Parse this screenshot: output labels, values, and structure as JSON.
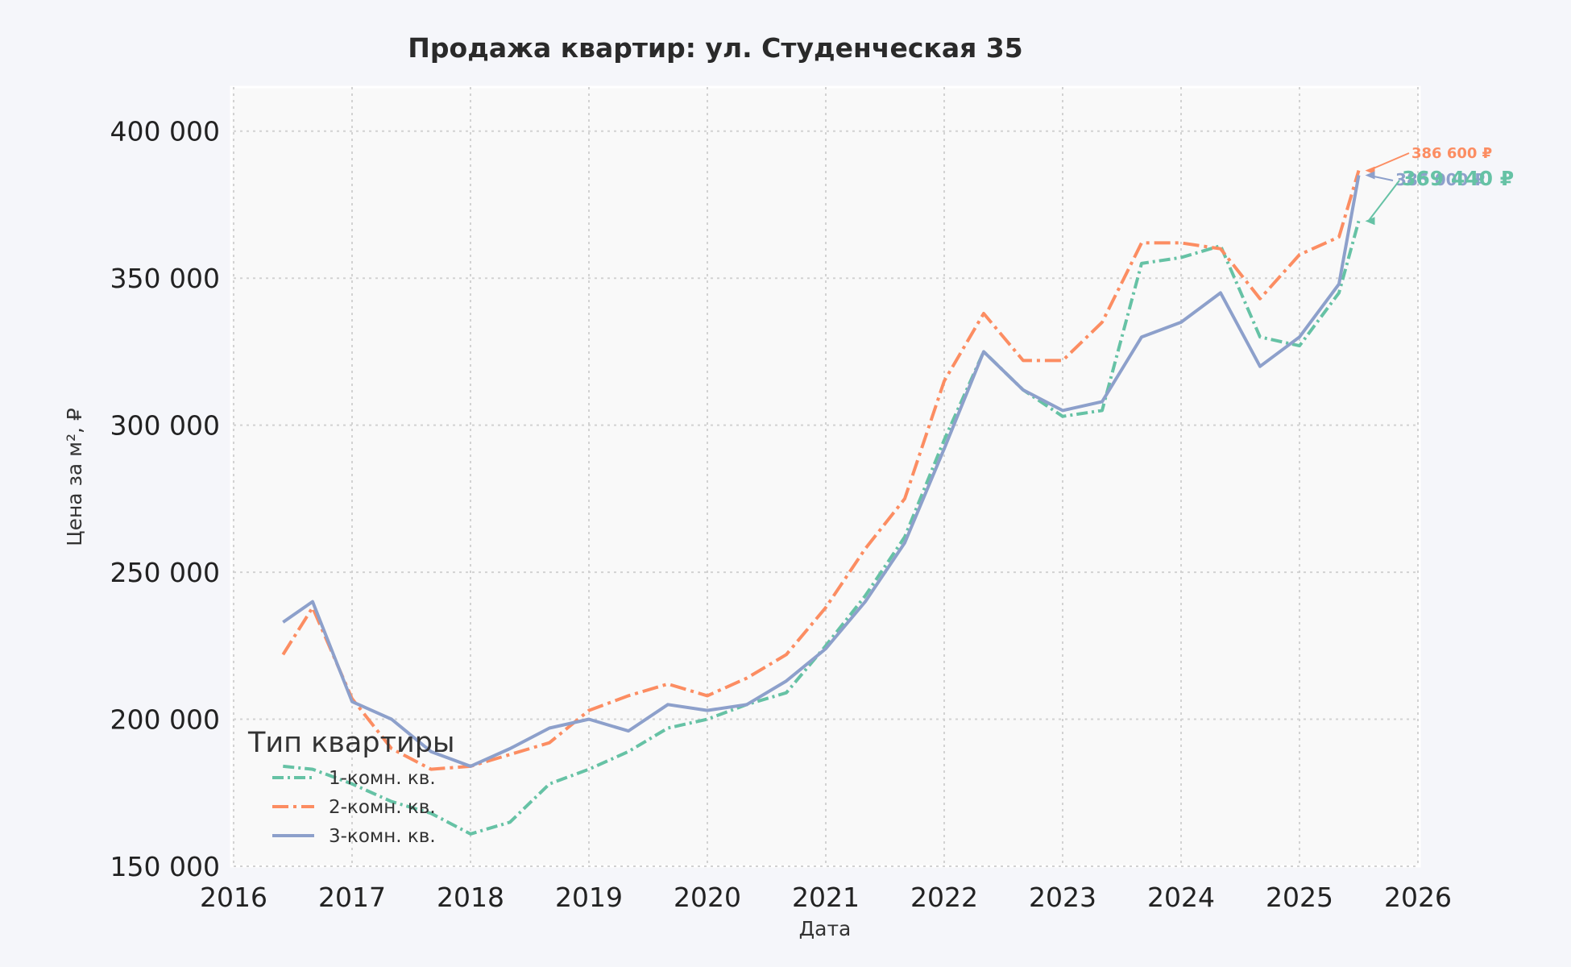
{
  "chart_data": {
    "type": "line",
    "title": "Продажа квартир: ул. Студенческая 35",
    "xlabel": "Дата",
    "ylabel": "Цена за м², ₽",
    "xlim": [
      "2016-01-01",
      "2026-01-01"
    ],
    "ylim": [
      150000,
      415000
    ],
    "xticks": [
      "2016",
      "2017",
      "2018",
      "2019",
      "2020",
      "2021",
      "2022",
      "2023",
      "2024",
      "2025",
      "2026"
    ],
    "yticks": [
      150000,
      200000,
      250000,
      300000,
      350000,
      400000
    ],
    "ytick_labels": [
      "150 000",
      "200 000",
      "250 000",
      "300 000",
      "350 000",
      "400 000"
    ],
    "grid": true,
    "legend": {
      "title": "Тип квартиры",
      "position": "lower-left"
    },
    "x": [
      "2016-06",
      "2016-09",
      "2017-01",
      "2017-05",
      "2017-09",
      "2018-01",
      "2018-05",
      "2018-09",
      "2019-01",
      "2019-05",
      "2019-09",
      "2020-01",
      "2020-05",
      "2020-09",
      "2021-01",
      "2021-05",
      "2021-09",
      "2022-01",
      "2022-05",
      "2022-09",
      "2023-01",
      "2023-05",
      "2023-09",
      "2024-01",
      "2024-05",
      "2024-09",
      "2025-01",
      "2025-05",
      "2025-07"
    ],
    "series": [
      {
        "name": "1-комн. кв.",
        "color": "#66c2a5",
        "dash": "14,5,3,5",
        "values": [
          184000,
          183000,
          178000,
          172000,
          168000,
          161000,
          165000,
          178000,
          183000,
          189000,
          197000,
          200000,
          205000,
          209000,
          225000,
          242000,
          262000,
          295000,
          325000,
          312000,
          303000,
          305000,
          355000,
          357000,
          361000,
          330000,
          327000,
          345000,
          369440
        ]
      },
      {
        "name": "2-комн. кв.",
        "color": "#fc8d62",
        "dash": "20,6,4,6",
        "values": [
          222000,
          238000,
          207000,
          190000,
          183000,
          184000,
          188000,
          192000,
          203000,
          208000,
          212000,
          208000,
          214000,
          222000,
          238000,
          258000,
          275000,
          315000,
          338000,
          322000,
          322000,
          335000,
          362000,
          362000,
          360000,
          343000,
          358000,
          364000,
          386600
        ]
      },
      {
        "name": "3-комн. кв.",
        "color": "#8da0cb",
        "dash": "",
        "values": [
          233000,
          240000,
          206000,
          200000,
          189000,
          184000,
          190000,
          197000,
          200000,
          196000,
          205000,
          203000,
          205000,
          213000,
          224000,
          240000,
          260000,
          292000,
          325000,
          312000,
          305000,
          308000,
          330000,
          335000,
          345000,
          320000,
          330000,
          348000,
          385000
        ]
      }
    ],
    "annotations": [
      {
        "series": "2-комн. кв.",
        "text": "386 600 ₽",
        "value": 386600
      },
      {
        "series": "3-комн. кв.",
        "text": "385 000 ₽",
        "value": 385000
      },
      {
        "series": "1-комн. кв.",
        "text": "369 440 ₽",
        "value": 369440
      }
    ]
  }
}
